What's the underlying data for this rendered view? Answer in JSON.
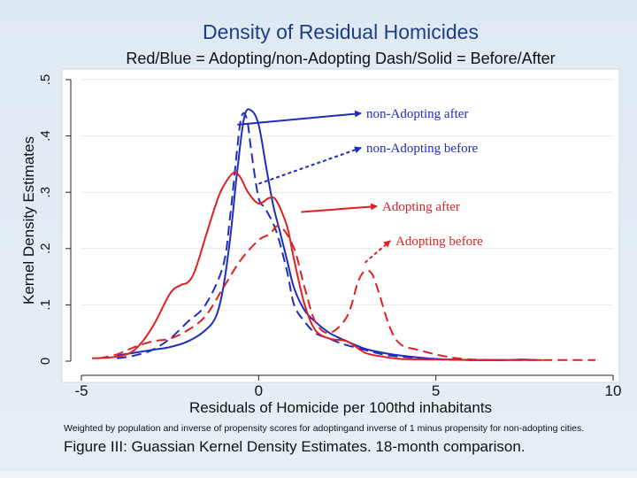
{
  "chart_data": {
    "type": "line",
    "title": "Density of Residual Homicides",
    "subtitle": "Red/Blue = Adopting/non-Adopting Dash/Solid = Before/After",
    "xlabel": "Residuals of Homicide per 100thd inhabitants",
    "ylabel": "Kernel Density Estimates",
    "xlim": [
      -5,
      10
    ],
    "ylim": [
      0,
      0.5
    ],
    "x_ticks": [
      "-5",
      "0",
      "5",
      "10"
    ],
    "y_ticks": [
      "0",
      ".1",
      ".2",
      ".3",
      ".4",
      ".5"
    ],
    "grid": true,
    "footnote": "Weighted by population and inverse of propensity scores for adoptingand inverse of 1 minus propensity for non-adopting cities.",
    "caption": "Figure III: Guassian Kernel Density Estimates. 18-month comparison.",
    "series": [
      {
        "name": "non-Adopting after",
        "color": "#1f2dbf",
        "dash": false,
        "x": [
          -4.0,
          -3.5,
          -3.0,
          -2.5,
          -2.0,
          -1.5,
          -1.2,
          -1.0,
          -0.8,
          -0.6,
          -0.4,
          -0.2,
          0.0,
          0.2,
          0.4,
          0.6,
          0.8,
          1.0,
          1.3,
          1.6,
          2.0,
          2.5,
          3.0,
          3.5,
          4.0,
          5.0,
          6.0,
          7.0,
          7.4,
          7.8
        ],
        "y": [
          0.01,
          0.015,
          0.02,
          0.025,
          0.035,
          0.055,
          0.08,
          0.13,
          0.22,
          0.34,
          0.435,
          0.445,
          0.42,
          0.35,
          0.28,
          0.23,
          0.18,
          0.13,
          0.09,
          0.07,
          0.05,
          0.035,
          0.022,
          0.015,
          0.01,
          0.004,
          0.002,
          0.002,
          0.003,
          0.002
        ]
      },
      {
        "name": "non-Adopting before",
        "color": "#1f2dbf",
        "dash": true,
        "x": [
          -4.0,
          -3.5,
          -3.0,
          -2.5,
          -2.0,
          -1.5,
          -1.0,
          -0.8,
          -0.6,
          -0.5,
          -0.4,
          -0.3,
          -0.2,
          0.0,
          0.2,
          0.5,
          0.8,
          1.0,
          1.3,
          1.6,
          2.0,
          2.4,
          3.0,
          3.5,
          4.0,
          5.0,
          6.0,
          7.0
        ],
        "y": [
          0.005,
          0.01,
          0.02,
          0.04,
          0.07,
          0.1,
          0.17,
          0.26,
          0.38,
          0.43,
          0.44,
          0.42,
          0.37,
          0.29,
          0.27,
          0.23,
          0.16,
          0.1,
          0.07,
          0.05,
          0.04,
          0.03,
          0.02,
          0.012,
          0.008,
          0.004,
          0.002,
          0.002
        ]
      },
      {
        "name": "Adopting after",
        "color": "#e02020",
        "dash": false,
        "x": [
          -4.7,
          -4.0,
          -3.5,
          -3.0,
          -2.5,
          -2.2,
          -2.0,
          -1.8,
          -1.5,
          -1.2,
          -1.0,
          -0.7,
          -0.5,
          -0.3,
          0.0,
          0.3,
          0.5,
          0.8,
          1.0,
          1.3,
          1.6,
          2.0,
          2.5,
          3.0,
          3.5,
          4.0,
          5.0,
          6.0,
          7.0,
          8.0
        ],
        "y": [
          0.005,
          0.008,
          0.02,
          0.06,
          0.12,
          0.135,
          0.14,
          0.16,
          0.22,
          0.28,
          0.31,
          0.335,
          0.325,
          0.3,
          0.28,
          0.29,
          0.285,
          0.24,
          0.18,
          0.1,
          0.055,
          0.04,
          0.035,
          0.015,
          0.008,
          0.004,
          0.003,
          0.002,
          0.002,
          0.002
        ]
      },
      {
        "name": "Adopting before",
        "color": "#e02020",
        "dash": true,
        "x": [
          -4.5,
          -4.0,
          -3.5,
          -3.0,
          -2.5,
          -2.0,
          -1.5,
          -1.0,
          -0.5,
          0.0,
          0.3,
          0.6,
          1.0,
          1.3,
          1.6,
          2.0,
          2.5,
          2.8,
          3.0,
          3.2,
          3.4,
          3.7,
          4.0,
          4.5,
          5.0,
          5.5,
          6.0,
          7.0,
          8.0,
          9.0,
          9.5
        ],
        "y": [
          0.005,
          0.012,
          0.025,
          0.035,
          0.04,
          0.055,
          0.08,
          0.13,
          0.18,
          0.215,
          0.225,
          0.24,
          0.2,
          0.13,
          0.07,
          0.05,
          0.08,
          0.14,
          0.16,
          0.155,
          0.12,
          0.06,
          0.03,
          0.02,
          0.012,
          0.006,
          0.003,
          0.002,
          0.002,
          0.002,
          0.002
        ]
      }
    ],
    "annotations": [
      {
        "text": "non-Adopting after",
        "color": "#1f2dbf",
        "dash": false,
        "point_x": -0.6,
        "point_y": 0.42
      },
      {
        "text": "non-Adopting before",
        "color": "#1f2dbf",
        "dash": true,
        "point_x": 0.0,
        "point_y": 0.315
      },
      {
        "text": "Adopting after",
        "color": "#e02020",
        "dash": false,
        "point_x": 1.2,
        "point_y": 0.265
      },
      {
        "text": "Adopting before",
        "color": "#e02020",
        "dash": true,
        "point_x": 3.0,
        "point_y": 0.175
      }
    ]
  }
}
